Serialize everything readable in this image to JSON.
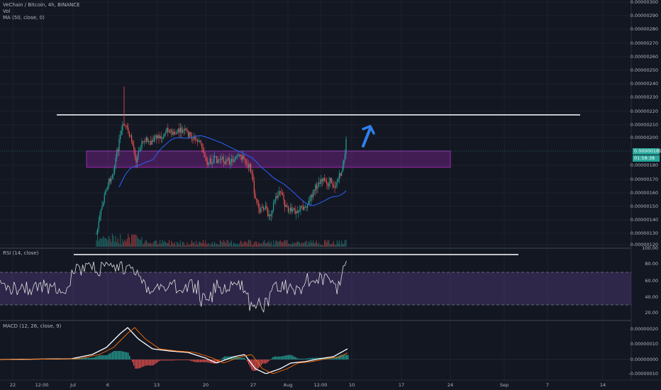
{
  "header": {
    "symbol_line": "VeChain / Bitcoin, 4h, BINANCE",
    "vol_label": "Vol",
    "ma_label": "MA (50, close, 0)"
  },
  "rsi": {
    "label": "RSI (14, close)",
    "axis": [
      "100.00",
      "80.00",
      "60.00",
      "40.00",
      "20.00"
    ]
  },
  "macd": {
    "label": "MACD (12, 26, close, 9)",
    "axis": [
      "0.00000020",
      "0.00000010",
      "0.00000000",
      "-0.00000010"
    ]
  },
  "price_axis": [
    "0.00000300",
    "0.00000290",
    "0.00000280",
    "0.00000270",
    "0.00000260",
    "0.00000250",
    "0.00000240",
    "0.00000230",
    "0.00000220",
    "0.00000210",
    "0.00000200",
    "0.00000180",
    "0.00000170",
    "0.00000160",
    "0.00000150",
    "0.00000140",
    "0.00000130",
    "0.00000120"
  ],
  "last_price": "0.00000189",
  "countdown": "01:58:38",
  "date_axis": [
    "22",
    "12:00",
    "Jul",
    "6",
    "13",
    "20",
    "27",
    "Aug",
    "12:00",
    "10",
    "17",
    "24",
    "Sep",
    "7",
    "14"
  ],
  "colors": {
    "up": "#26a69a",
    "down": "#ef5350",
    "ma": "#2962ff",
    "box": "#9c27b0",
    "arrow": "#2f80ed"
  }
}
